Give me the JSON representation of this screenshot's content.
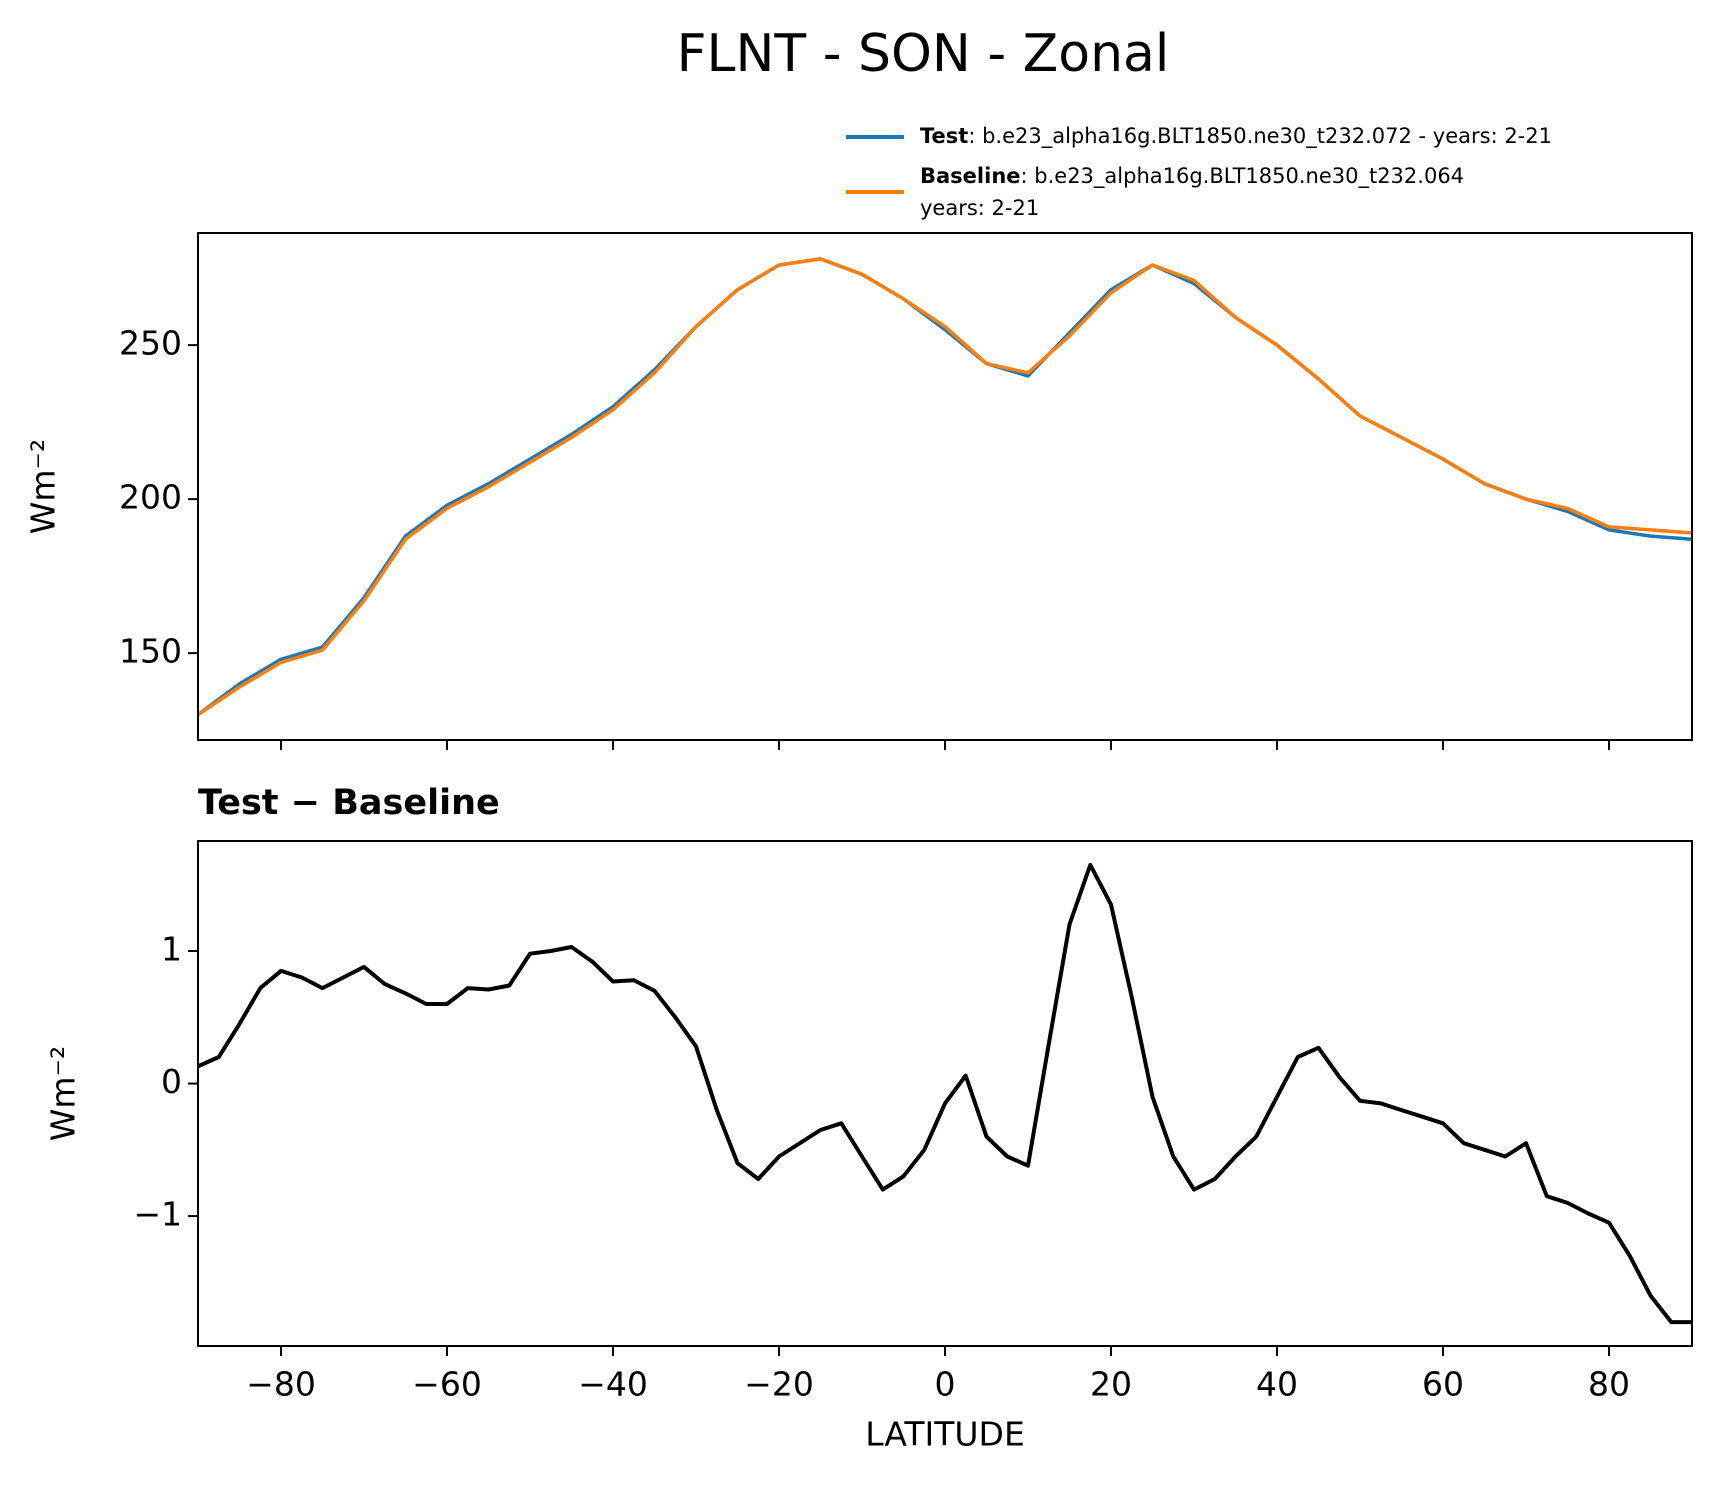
{
  "chart_data": [
    {
      "type": "line",
      "title": "FLNT - SON - Zonal",
      "ylabel": "Wm⁻²",
      "x": [
        -90,
        -85,
        -80,
        -75,
        -70,
        -65,
        -60,
        -55,
        -50,
        -45,
        -40,
        -35,
        -30,
        -25,
        -20,
        -15,
        -10,
        -5,
        0,
        5,
        10,
        15,
        20,
        25,
        30,
        35,
        40,
        45,
        50,
        55,
        60,
        65,
        70,
        75,
        80,
        85,
        90
      ],
      "series": [
        {
          "name": "Test",
          "description": [
            ": b.e23_alpha16g.BLT1850.ne30_t232.072 - years: 2-21"
          ],
          "color": "#1f77b4",
          "values": [
            130,
            140,
            148,
            152,
            168,
            188,
            198,
            205,
            213,
            221,
            230,
            242,
            256,
            268,
            276,
            278,
            273,
            265,
            255,
            244,
            240,
            254,
            268,
            276,
            270,
            259,
            250,
            239,
            227,
            220,
            213,
            205,
            200,
            196,
            190,
            188,
            187
          ]
        },
        {
          "name": "Baseline",
          "description": [
            ": b.e23_alpha16g.BLT1850.ne30_t232.064",
            "years: 2-21"
          ],
          "color": "#ff7f0e",
          "values": [
            130,
            139,
            147,
            151,
            167,
            187,
            197,
            204,
            212,
            220,
            229,
            241,
            256,
            268,
            276,
            278,
            273,
            265,
            256,
            244,
            241,
            253,
            267,
            276,
            271,
            259,
            250,
            239,
            227,
            220,
            213,
            205,
            200,
            197,
            191,
            190,
            189
          ]
        }
      ],
      "xlim": [
        -90,
        90
      ],
      "xticks": [
        -80,
        -60,
        -40,
        -20,
        0,
        20,
        40,
        60,
        80
      ],
      "xticklabels": false,
      "ylim": [
        121.8,
        286.4
      ],
      "yticks": [
        150,
        200,
        250
      ]
    },
    {
      "type": "line",
      "title": "Test − Baseline",
      "xlabel": "LATITUDE",
      "ylabel": "Wm⁻²",
      "x": [
        -90,
        -87.5,
        -85,
        -82.5,
        -80,
        -77.5,
        -75,
        -72.5,
        -70,
        -67.5,
        -65,
        -62.5,
        -60,
        -57.5,
        -55,
        -52.5,
        -50,
        -47.5,
        -45,
        -42.5,
        -40,
        -37.5,
        -35,
        -32.5,
        -30,
        -27.5,
        -25,
        -22.5,
        -20,
        -17.5,
        -15,
        -12.5,
        -10,
        -7.5,
        -5,
        -2.5,
        0,
        2.5,
        5,
        7.5,
        10,
        12.5,
        15,
        17.5,
        20,
        22.5,
        25,
        27.5,
        30,
        32.5,
        35,
        37.5,
        40,
        42.5,
        45,
        47.5,
        50,
        52.5,
        55,
        57.5,
        60,
        62.5,
        65,
        67.5,
        70,
        72.5,
        75,
        77.5,
        80,
        82.5,
        85,
        87.5,
        90
      ],
      "series": [
        {
          "name": "Test − Baseline",
          "color": "#000000",
          "values": [
            0.13,
            0.2,
            0.45,
            0.72,
            0.85,
            0.8,
            0.72,
            0.8,
            0.88,
            0.75,
            0.68,
            0.6,
            0.6,
            0.72,
            0.71,
            0.74,
            0.98,
            1.0,
            1.03,
            0.92,
            0.77,
            0.78,
            0.7,
            0.5,
            0.28,
            -0.2,
            -0.6,
            -0.72,
            -0.55,
            -0.45,
            -0.35,
            -0.3,
            -0.55,
            -0.8,
            -0.7,
            -0.5,
            -0.15,
            0.06,
            -0.4,
            -0.55,
            -0.62,
            0.3,
            1.2,
            1.65,
            1.35,
            0.65,
            -0.1,
            -0.55,
            -0.8,
            -0.72,
            -0.55,
            -0.4,
            -0.1,
            0.2,
            0.27,
            0.05,
            -0.13,
            -0.15,
            -0.2,
            -0.25,
            -0.3,
            -0.45,
            -0.5,
            -0.55,
            -0.45,
            -0.85,
            -0.9,
            -0.98,
            -1.05,
            -1.3,
            -1.6,
            -1.8,
            -1.8
          ]
        }
      ],
      "xlim": [
        -90,
        90
      ],
      "xticks": [
        {
          "value": -80,
          "label": "−80"
        },
        {
          "value": -60,
          "label": "−60"
        },
        {
          "value": -40,
          "label": "−40"
        },
        {
          "value": -20,
          "label": "−20"
        },
        0,
        20,
        40,
        60,
        80
      ],
      "xticklabels": true,
      "ylim": [
        -1.98,
        1.83
      ],
      "yticks": [
        {
          "value": -1,
          "label": "−1"
        },
        0,
        1
      ]
    }
  ]
}
